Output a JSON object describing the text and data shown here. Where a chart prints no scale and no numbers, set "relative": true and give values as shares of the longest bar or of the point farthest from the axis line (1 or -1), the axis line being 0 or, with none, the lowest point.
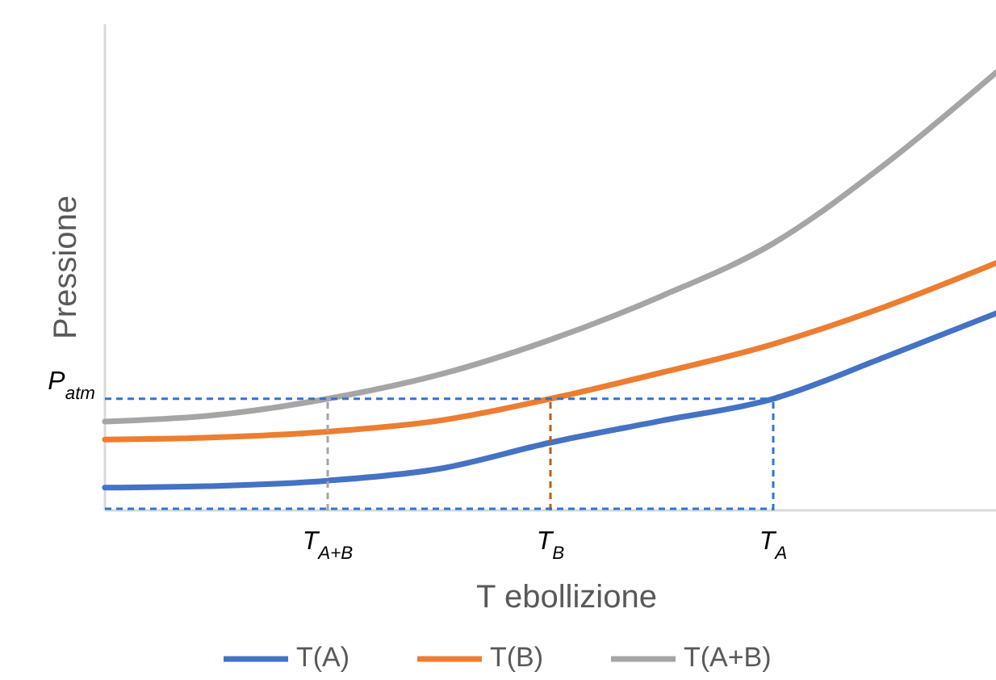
{
  "chart_data": {
    "type": "line",
    "relative": true,
    "xlabel": "T ebollizione",
    "ylabel": "Pressione",
    "categories": [
      null,
      null,
      "T$_{A+B}$",
      null,
      "T$_{B}$",
      null,
      "T$_{A}$",
      null,
      null
    ],
    "series": [
      {
        "name": "T(A)",
        "color": "#4472c4",
        "values": [
          0.052,
          0.056,
          0.068,
          0.095,
          0.155,
          0.205,
          0.255,
          0.35,
          0.45
        ]
      },
      {
        "name": "T(B)",
        "color": "#ed7d31",
        "values": [
          0.162,
          0.167,
          0.18,
          0.205,
          0.255,
          0.315,
          0.38,
          0.465,
          0.565
        ]
      },
      {
        "name": "T(A+B)",
        "color": "#a5a5a5",
        "values": [
          0.203,
          0.218,
          0.255,
          0.31,
          0.39,
          0.49,
          0.61,
          0.79,
          1.0
        ]
      }
    ],
    "ref_lines": [
      {
        "axis": "y",
        "value": 0.255,
        "label": "P$_{atm}$",
        "color": "#2e75d6",
        "line_style": "dashed"
      },
      {
        "axis": "x",
        "value": "T$_{A+B}$",
        "color": "#a5a5a5",
        "line_style": "dashed"
      },
      {
        "axis": "x",
        "value": "T$_{B}$",
        "color": "#c55a11",
        "line_style": "dashed"
      },
      {
        "axis": "x",
        "value": "T$_{A}$",
        "color": "#2e75d6",
        "line_style": "dashed"
      }
    ],
    "legend": "bottom",
    "grid": false,
    "line_style": "solid"
  }
}
